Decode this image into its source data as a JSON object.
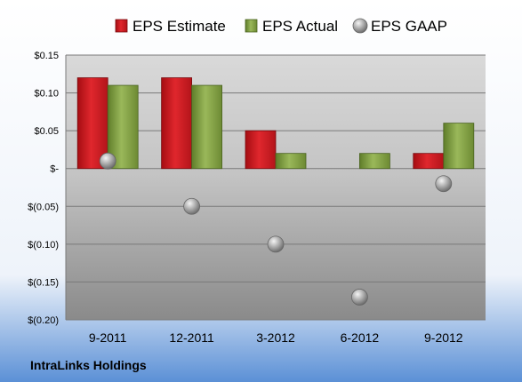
{
  "company": "IntraLinks Holdings",
  "chart_data": {
    "type": "bar",
    "categories": [
      "9-2011",
      "12-2011",
      "3-2012",
      "6-2012",
      "9-2012"
    ],
    "series": [
      {
        "name": "EPS Estimate",
        "type": "bar",
        "color": "#c8161d",
        "values": [
          0.12,
          0.12,
          0.05,
          null,
          0.02
        ]
      },
      {
        "name": "EPS Actual",
        "type": "bar",
        "color": "#7a9a3a",
        "values": [
          0.11,
          0.11,
          0.02,
          0.02,
          0.06
        ]
      },
      {
        "name": "EPS GAAP",
        "type": "scatter",
        "color": "#9a9a9a",
        "values": [
          0.01,
          -0.05,
          -0.1,
          -0.17,
          -0.02
        ]
      }
    ],
    "ylim": [
      -0.2,
      0.15
    ],
    "yticks": [
      0.15,
      0.1,
      0.05,
      0,
      -0.05,
      -0.1,
      -0.15,
      -0.2
    ],
    "ytick_labels": [
      "$0.15",
      "$0.10",
      "$0.05",
      "$-",
      "$(0.05)",
      "$(0.10)",
      "$(0.15)",
      "$(0.20)"
    ],
    "grid": true,
    "legend": "top"
  }
}
